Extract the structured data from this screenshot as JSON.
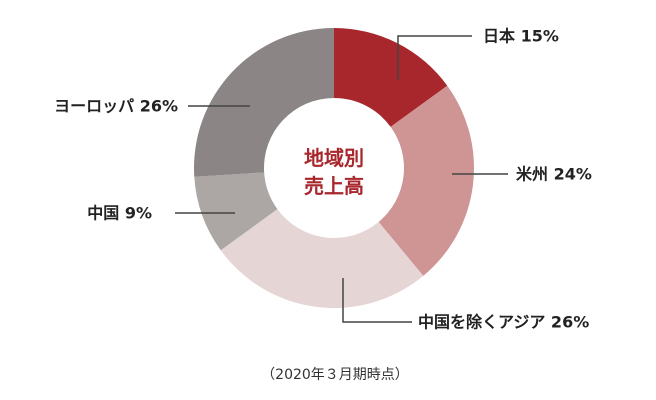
{
  "chart_data": {
    "type": "pie",
    "title": "地域別\n売上高",
    "title_lines": [
      "地域別",
      "売上高"
    ],
    "note": "（2020年３月期時点）",
    "slices": [
      {
        "label": "日本",
        "value": 15,
        "display": "日本 15%",
        "color": "#a8272c"
      },
      {
        "label": "米州",
        "value": 24,
        "display": "米州 24%",
        "color": "#cf9595"
      },
      {
        "label": "中国を除くアジア",
        "value": 26,
        "display": "中国を除くアジア 26%",
        "color": "#e5d5d5"
      },
      {
        "label": "中国",
        "value": 9,
        "display": "中国 9%",
        "color": "#aca6a4"
      },
      {
        "label": "ヨーロッパ",
        "value": 26,
        "display": "ヨーロッパ 26%",
        "color": "#8b8685"
      }
    ],
    "colors": {
      "title": "#a8272c",
      "label": "#222222",
      "leader": "#444444",
      "note": "#333333"
    }
  }
}
